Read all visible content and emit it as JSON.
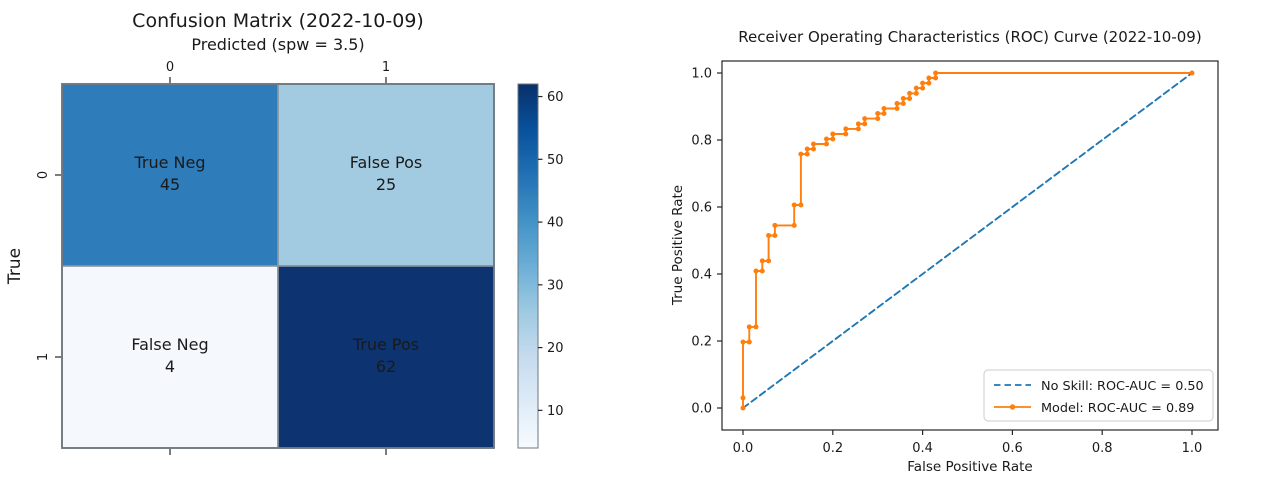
{
  "figure": {
    "background": "#ffffff",
    "text_color": "#1a1a1a",
    "spine_color_left": "#6e7781",
    "spine_color_right": "#262626"
  },
  "chart_data": [
    {
      "id": "confusion_matrix",
      "type": "heatmap",
      "title": "Confusion Matrix (2022-10-09)",
      "xlabel": "Predicted (spw = 3.5)",
      "ylabel": "True",
      "x_tick_labels": [
        "0",
        "1"
      ],
      "y_tick_labels": [
        "0",
        "1"
      ],
      "values": [
        [
          45,
          25
        ],
        [
          4,
          62
        ]
      ],
      "cells": [
        {
          "row": 0,
          "col": 0,
          "label": "True Neg",
          "value": "45",
          "color": "#2e7cba",
          "text_color": "#eef5fb"
        },
        {
          "row": 0,
          "col": 1,
          "label": "False Pos",
          "value": "25",
          "color": "#a2cbe2",
          "text_color": "#10233f"
        },
        {
          "row": 1,
          "col": 0,
          "label": "False Neg",
          "value": "4",
          "color": "#f5f9fd",
          "text_color": "#10233f"
        },
        {
          "row": 1,
          "col": 1,
          "label": "True Pos",
          "value": "62",
          "color": "#0d3370",
          "text_color": "#eef5fb"
        }
      ],
      "colorbar": {
        "min": 4,
        "max": 62,
        "ticks": [
          10,
          20,
          30,
          40,
          50,
          60
        ],
        "colormap": "Blues",
        "stops": [
          "#f7fbff",
          "#deebf7",
          "#c6dbef",
          "#9ecae1",
          "#6baed6",
          "#4292c6",
          "#2171b5",
          "#08519c",
          "#08306b"
        ]
      },
      "grid": false
    },
    {
      "id": "roc_curve",
      "type": "line",
      "title": "Receiver Operating Characteristics (ROC) Curve (2022-10-09)",
      "xlabel": "False Positive Rate",
      "ylabel": "True Positive Rate",
      "x_tick_labels": [
        "0.0",
        "0.2",
        "0.4",
        "0.6",
        "0.8",
        "1.0"
      ],
      "y_tick_labels": [
        "0.0",
        "0.2",
        "0.4",
        "0.6",
        "0.8",
        "1.0"
      ],
      "xlim": [
        -0.05,
        1.05
      ],
      "ylim": [
        -0.05,
        1.05
      ],
      "grid": false,
      "legend_position": "lower right",
      "series": [
        {
          "name": "No Skill: ROC-AUC = 0.50",
          "color": "#1f77b4",
          "style": "dashed",
          "marker": false,
          "points": [
            [
              0.0,
              0.0
            ],
            [
              1.0,
              1.0
            ]
          ]
        },
        {
          "name": "Model: ROC-AUC = 0.89",
          "color": "#ff7f0e",
          "style": "solid",
          "marker": true,
          "points": [
            [
              0.0,
              0.0
            ],
            [
              0.0,
              0.03
            ],
            [
              0.0,
              0.197
            ],
            [
              0.014,
              0.197
            ],
            [
              0.014,
              0.242
            ],
            [
              0.029,
              0.242
            ],
            [
              0.029,
              0.409
            ],
            [
              0.043,
              0.409
            ],
            [
              0.043,
              0.439
            ],
            [
              0.057,
              0.439
            ],
            [
              0.057,
              0.515
            ],
            [
              0.071,
              0.515
            ],
            [
              0.071,
              0.545
            ],
            [
              0.114,
              0.545
            ],
            [
              0.114,
              0.606
            ],
            [
              0.129,
              0.606
            ],
            [
              0.129,
              0.758
            ],
            [
              0.143,
              0.758
            ],
            [
              0.143,
              0.773
            ],
            [
              0.157,
              0.773
            ],
            [
              0.157,
              0.788
            ],
            [
              0.186,
              0.788
            ],
            [
              0.186,
              0.803
            ],
            [
              0.2,
              0.803
            ],
            [
              0.2,
              0.818
            ],
            [
              0.229,
              0.818
            ],
            [
              0.229,
              0.833
            ],
            [
              0.257,
              0.833
            ],
            [
              0.257,
              0.848
            ],
            [
              0.271,
              0.848
            ],
            [
              0.271,
              0.864
            ],
            [
              0.3,
              0.864
            ],
            [
              0.3,
              0.879
            ],
            [
              0.314,
              0.879
            ],
            [
              0.314,
              0.894
            ],
            [
              0.343,
              0.894
            ],
            [
              0.343,
              0.909
            ],
            [
              0.357,
              0.909
            ],
            [
              0.357,
              0.924
            ],
            [
              0.371,
              0.924
            ],
            [
              0.371,
              0.939
            ],
            [
              0.386,
              0.939
            ],
            [
              0.386,
              0.955
            ],
            [
              0.4,
              0.955
            ],
            [
              0.4,
              0.97
            ],
            [
              0.414,
              0.97
            ],
            [
              0.414,
              0.985
            ],
            [
              0.429,
              0.985
            ],
            [
              0.429,
              1.0
            ],
            [
              1.0,
              1.0
            ]
          ]
        }
      ]
    }
  ]
}
